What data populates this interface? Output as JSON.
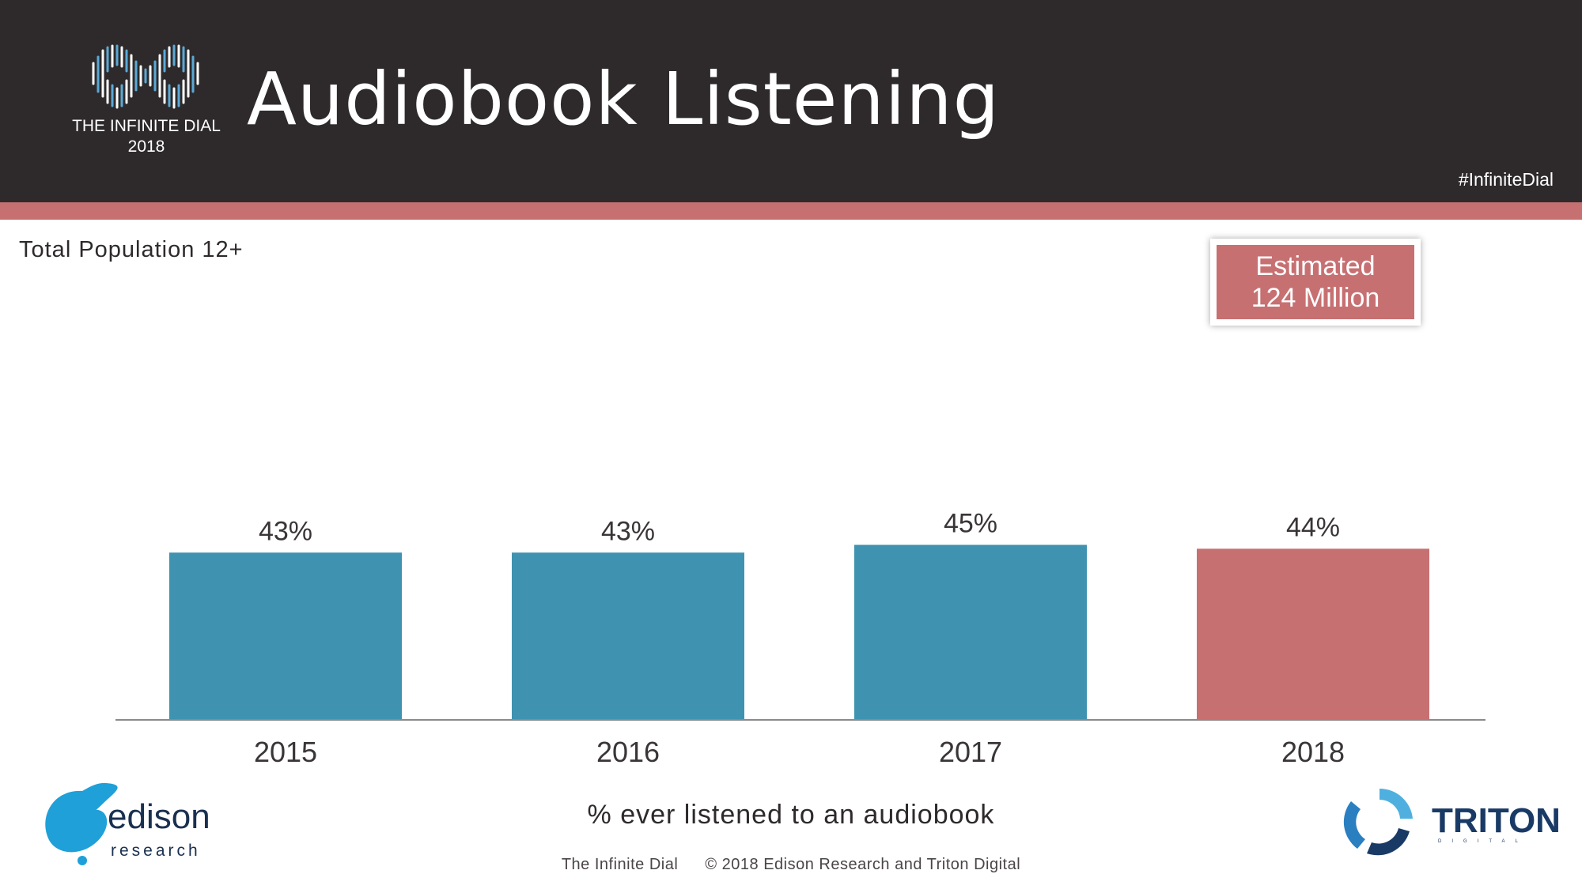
{
  "header": {
    "logo_line1": "THE INFINITE DIAL",
    "logo_line2": "2018",
    "title": "Audiobook  Listening",
    "hashtag": "#InfiniteDial"
  },
  "subtitle": "Total  Population  12+",
  "callout": {
    "line1": "Estimated",
    "line2": "124 Million"
  },
  "chart_data": {
    "type": "bar",
    "categories": [
      "2015",
      "2016",
      "2017",
      "2018"
    ],
    "values": [
      43,
      43,
      45,
      44
    ],
    "value_labels": [
      "43%",
      "43%",
      "45%",
      "44%"
    ],
    "colors": [
      "#3f92b0",
      "#3f92b0",
      "#3f92b0",
      "#c77072"
    ],
    "title": "Audiobook Listening",
    "xlabel": "% ever listened to an audiobook",
    "ylabel": "",
    "ylim": [
      0,
      100
    ],
    "grid": false,
    "legend": "none"
  },
  "footer": {
    "left": "The  Infinite  Dial",
    "right": "©  2018  Edison  Research  and  Triton  Digital"
  },
  "logos": {
    "edison_word": "edison",
    "edison_sub": "research",
    "triton_word": "TRITON",
    "triton_sub": "DIGITAL"
  }
}
